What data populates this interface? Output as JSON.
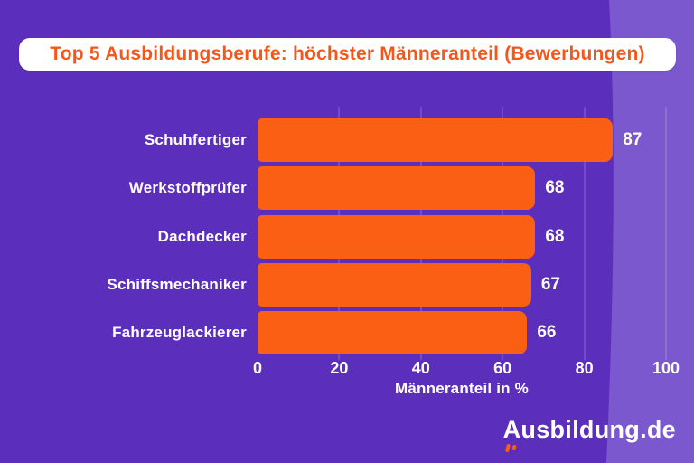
{
  "background": {
    "base_color": "#5B2EBC",
    "accent_shape_color": "#7C58CE"
  },
  "title": {
    "text": "Top 5 Ausbildungsberufe: höchster Männeranteil (Bewerbungen)",
    "text_color": "#F4571C",
    "banner_color": "#FFFFFF"
  },
  "chart_data": {
    "type": "bar",
    "orientation": "horizontal",
    "categories": [
      "Schuhfertiger",
      "Werkstoffprüfer",
      "Dachdecker",
      "Schiffsmechaniker",
      "Fahrzeuglackierer"
    ],
    "values": [
      87,
      68,
      68,
      67,
      66
    ],
    "xlabel": "Männeranteil in %",
    "x_ticks": [
      0,
      20,
      40,
      60,
      80,
      100
    ],
    "xlim": [
      0,
      100
    ],
    "grid": true,
    "legend": false,
    "bar_color": "#FA5F13",
    "text_color": "#FFFFFF",
    "grid_color": "rgba(255,255,255,0.15)"
  },
  "branding": {
    "logo_first": "A",
    "logo_rest": "usbildung.de",
    "logo_color": "#FFFFFF",
    "flame_color": "#FA5F13"
  }
}
